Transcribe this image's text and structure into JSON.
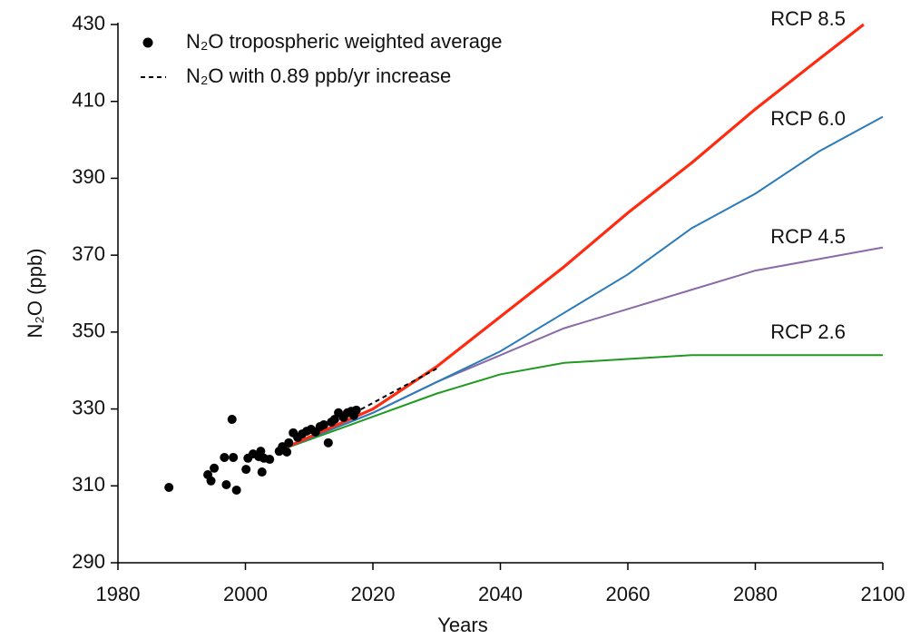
{
  "chart_data": {
    "type": "line",
    "xlabel": "Years",
    "ylabel": "N₂O (ppb)",
    "xlim": [
      1980,
      2100
    ],
    "ylim": [
      290,
      430
    ],
    "xticks": [
      1980,
      2000,
      2020,
      2040,
      2060,
      2080,
      2100
    ],
    "yticks": [
      290,
      310,
      330,
      350,
      370,
      390,
      410,
      430
    ],
    "legend": "top-left",
    "series": [
      {
        "name": "RCP 2.6",
        "type": "line",
        "color": "#1f9a1f",
        "x": [
          2005,
          2020,
          2030,
          2040,
          2050,
          2060,
          2070,
          2080,
          2090,
          2100
        ],
        "values": [
          319,
          328,
          334,
          339,
          342,
          343,
          344,
          344,
          344,
          344
        ]
      },
      {
        "name": "RCP 4.5",
        "type": "line",
        "color": "#8a6aa8",
        "x": [
          2005,
          2020,
          2030,
          2040,
          2050,
          2060,
          2070,
          2080,
          2090,
          2100
        ],
        "values": [
          319,
          329,
          337,
          344,
          351,
          356,
          361,
          366,
          369,
          372
        ]
      },
      {
        "name": "RCP 6.0",
        "type": "line",
        "color": "#2b7bb9",
        "x": [
          2005,
          2020,
          2030,
          2040,
          2050,
          2060,
          2070,
          2080,
          2090,
          2100
        ],
        "values": [
          319,
          329,
          337,
          345,
          355,
          365,
          377,
          386,
          397,
          406
        ]
      },
      {
        "name": "RCP 8.5",
        "type": "line",
        "color": "#ff2a10",
        "x": [
          2005,
          2020,
          2030,
          2040,
          2050,
          2060,
          2070,
          2080,
          2090,
          2097
        ],
        "values": [
          319,
          330,
          341,
          354,
          367,
          381,
          394,
          408,
          421,
          430
        ]
      },
      {
        "name": "N₂O with 0.89 ppb/yr increase",
        "type": "dashed",
        "color": "#000000",
        "x": [
          2017,
          2030
        ],
        "values": [
          328.9,
          340.5
        ]
      },
      {
        "name": "N₂O tropospheric weighted average",
        "type": "scatter",
        "color": "#000000",
        "x": [
          1988.0,
          1994.1,
          1994.6,
          1995.1,
          1996.7,
          1997.0,
          1997.9,
          1998.1,
          1998.6,
          2000.1,
          2000.4,
          2001.2,
          2002.1,
          2002.4,
          2002.6,
          2002.9,
          2003.8,
          2005.3,
          2005.8,
          2006.5,
          2006.8,
          2007.5,
          2008.2,
          2008.9,
          2009.6,
          2010.3,
          2011.0,
          2011.7,
          2012.3,
          2013.0,
          2013.5,
          2014.0,
          2014.6,
          2015.4,
          2016.0,
          2016.6,
          2017.0,
          2017.4
        ],
        "values": [
          309.6,
          312.9,
          311.3,
          314.6,
          317.4,
          310.3,
          327.3,
          317.4,
          308.9,
          314.3,
          317.2,
          318.3,
          317.6,
          319.0,
          313.6,
          317.2,
          316.9,
          319.0,
          320.2,
          318.8,
          321.2,
          323.8,
          322.6,
          323.5,
          324.2,
          324.7,
          324.0,
          325.4,
          325.9,
          321.2,
          326.6,
          327.3,
          329.0,
          327.8,
          329.0,
          329.4,
          328.3,
          329.7
        ]
      }
    ]
  }
}
